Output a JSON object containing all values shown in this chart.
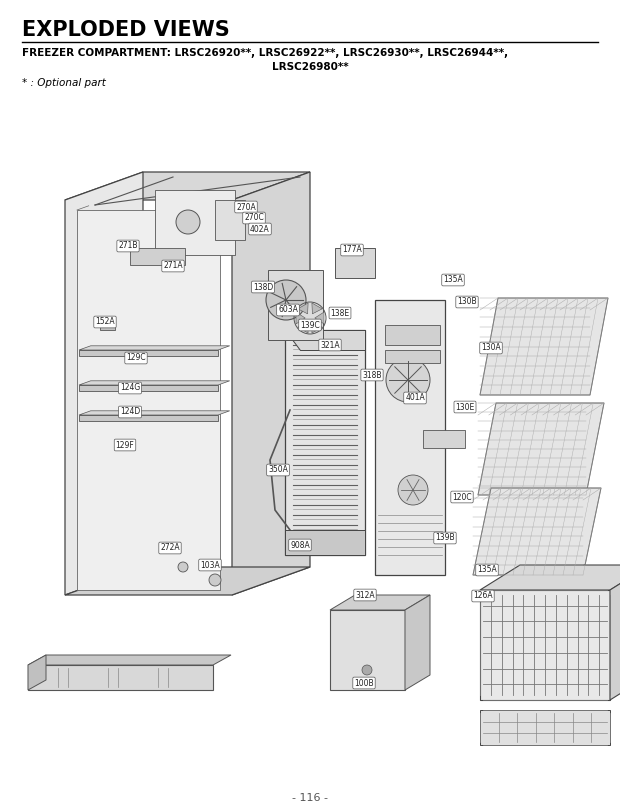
{
  "title": "EXPLODED VIEWS",
  "subtitle_line1": "FREEZER COMPARTMENT: LRSC26920**, LRSC26922**, LRSC26930**, LRSC26944**,",
  "subtitle_line2": "LRSC26980**",
  "optional_note": "* : Optional part",
  "page_number": "- 116 -",
  "bg_color": "#ffffff",
  "title_color": "#000000",
  "title_fontsize": 15,
  "subtitle_fontsize": 7.5,
  "note_fontsize": 7.5,
  "page_fontsize": 8,
  "fig_width": 6.2,
  "fig_height": 8.08,
  "dpi": 100
}
